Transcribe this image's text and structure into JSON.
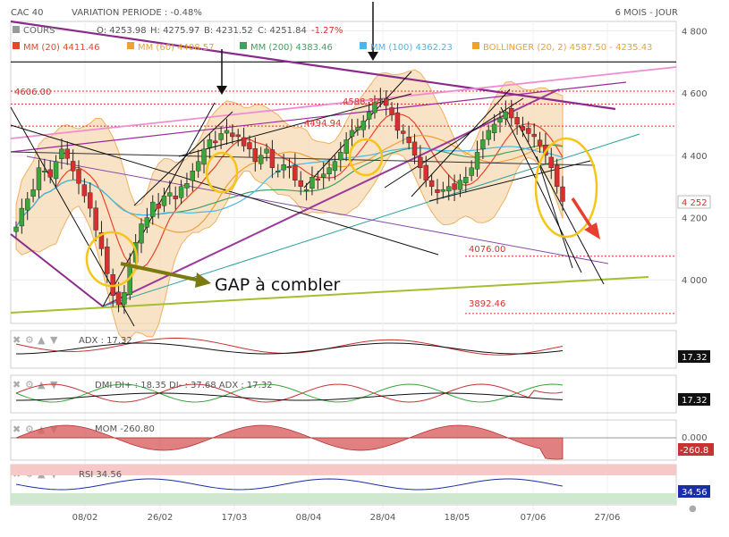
{
  "header": {
    "title": "CAC 40",
    "variation": "VARIATION PERIODE : -0.48%",
    "period": "6 MOIS - JOUR"
  },
  "legend": {
    "cours_label": "COURS",
    "ohlc": {
      "o": "O: 4253.98",
      "h": "H: 4275.97",
      "b": "B: 4231.52",
      "c": "C: 4251.84",
      "chg": "-1.27%"
    },
    "mm20": "MM (20)  4411.46",
    "mm60": "MM (60)  4408.57",
    "mm200": "MM (200)  4383.46",
    "mm100": "MM (100)  4362.23",
    "bollinger": "BOLLINGER (20, 2)  4587.50 - 4235.43"
  },
  "annotations": {
    "level_4606": "4606.00",
    "level_4494": "4494.94",
    "level_4588": "4588.33",
    "level_4076": "4076.00",
    "level_3892": "3892.46",
    "gap_text": "GAP à combler",
    "last_price": "4 252"
  },
  "colors": {
    "mm20": "#e8452c",
    "mm60": "#f0a030",
    "mm200": "#40a060",
    "mm100": "#48b8e8",
    "bollinger_fill": "#f7d7ae",
    "up": "#3aa53a",
    "down": "#d83030",
    "annotation_yellow": "#f5c518",
    "gap_arrow": "#7a7a10",
    "down_arrow": "#e84030"
  },
  "panels": {
    "adx": {
      "label": "ADX : 17.32",
      "value_box": "17.32"
    },
    "dmi": {
      "label": "DMI DI+ : 18.35 DI- : 37.68 ADX : 17.32",
      "value_box": "17.32"
    },
    "mom": {
      "label": "MOM  -260.80",
      "axis_zero": "0.000",
      "value_box": "-260.8"
    },
    "rsi": {
      "label": "RSI 34.56",
      "value_box": "34.56"
    }
  },
  "chart_data": {
    "type": "candlestick",
    "x_ticks": [
      "08/02",
      "26/02",
      "17/03",
      "08/04",
      "28/04",
      "18/05",
      "07/06",
      "27/06"
    ],
    "y_ticks": [
      "4 800",
      "4 600",
      "4 400",
      "4 200",
      "4 000"
    ],
    "ylim": [
      3860,
      4830
    ],
    "closes": [
      4170,
      4230,
      4260,
      4290,
      4360,
      4350,
      4330,
      4380,
      4420,
      4390,
      4350,
      4310,
      4270,
      4230,
      4160,
      4100,
      4020,
      3950,
      3920,
      3960,
      4050,
      4120,
      4180,
      4200,
      4250,
      4230,
      4270,
      4280,
      4260,
      4300,
      4310,
      4350,
      4380,
      4420,
      4450,
      4440,
      4470,
      4480,
      4460,
      4460,
      4430,
      4420,
      4380,
      4400,
      4420,
      4360,
      4350,
      4370,
      4360,
      4320,
      4300,
      4290,
      4330,
      4320,
      4340,
      4360,
      4380,
      4410,
      4450,
      4480,
      4490,
      4510,
      4540,
      4570,
      4580,
      4560,
      4530,
      4480,
      4470,
      4440,
      4400,
      4360,
      4320,
      4300,
      4280,
      4290,
      4300,
      4290,
      4320,
      4330,
      4360,
      4410,
      4450,
      4480,
      4500,
      4520,
      4540,
      4520,
      4500,
      4480,
      4470,
      4460,
      4430,
      4400,
      4360,
      4300,
      4252
    ]
  }
}
